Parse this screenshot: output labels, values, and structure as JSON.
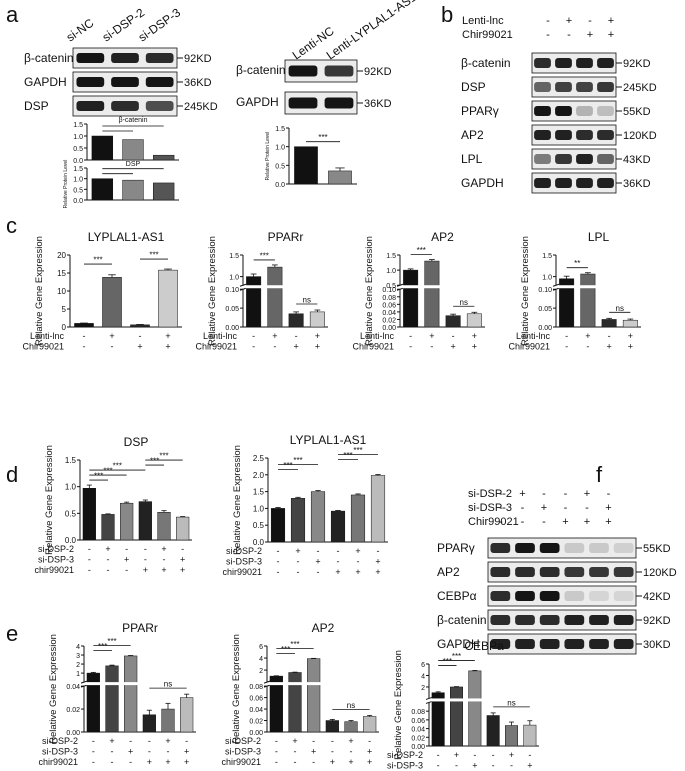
{
  "panel_letters": [
    "a",
    "b",
    "c",
    "d",
    "e",
    "f"
  ],
  "western_blots": {
    "a1": {
      "lanes": [
        "si-NC",
        "si-DSP-2",
        "si-DSP-3"
      ],
      "rows": [
        {
          "label": "β-catenin",
          "size": "92KD"
        },
        {
          "label": "GAPDH",
          "size": "36KD"
        },
        {
          "label": "DSP",
          "size": "245KD"
        }
      ]
    },
    "a2": {
      "lanes": [
        "Lenti-NC",
        "Lenti-LYPLAL1-AS1"
      ],
      "rows": [
        {
          "label": "β-catenin",
          "size": "92KD"
        },
        {
          "label": "GAPDH",
          "size": "36KD"
        }
      ]
    },
    "b": {
      "conditions": [
        {
          "label": "Lenti-lnc",
          "signs": [
            "-",
            "+",
            "-",
            "+"
          ]
        },
        {
          "label": "Chir99021",
          "signs": [
            "-",
            "-",
            "+",
            "+"
          ]
        }
      ],
      "rows": [
        {
          "label": "β-catenin",
          "size": "92KD"
        },
        {
          "label": "DSP",
          "size": "245KD"
        },
        {
          "label": "PPARγ",
          "size": "55KD"
        },
        {
          "label": "AP2",
          "size": "120KD"
        },
        {
          "label": "LPL",
          "size": "43KD"
        },
        {
          "label": "GAPDH",
          "size": "36KD"
        }
      ]
    },
    "f": {
      "conditions": [
        {
          "label": "si-DSP-2",
          "signs": [
            "-",
            "+",
            "-",
            "-",
            "+",
            "-"
          ]
        },
        {
          "label": "si-DSP-3",
          "signs": [
            "-",
            "-",
            "+",
            "-",
            "-",
            "+"
          ]
        },
        {
          "label": "Chir99021",
          "signs": [
            "-",
            "-",
            "-",
            "+",
            "+",
            "+"
          ]
        }
      ],
      "rows": [
        {
          "label": "PPARγ",
          "size": "55KD"
        },
        {
          "label": "AP2",
          "size": "120KD"
        },
        {
          "label": "CEBPα",
          "size": "42KD"
        },
        {
          "label": "β-catenin",
          "size": "92KD"
        },
        {
          "label": "GAPDH",
          "size": "30KD"
        }
      ]
    }
  },
  "chart_data": [
    {
      "id": "a_bcat",
      "type": "bar",
      "title": "β-catenin",
      "ylabel": "",
      "categories": [
        "si-NC",
        "si-DSP-2",
        "si-DSP-3"
      ],
      "values": [
        1.0,
        0.85,
        0.2
      ],
      "ylim": [
        0,
        1.5
      ],
      "yticks": [
        "0.0",
        "0.5",
        "1.0",
        "1.5"
      ],
      "colors": [
        "#111111",
        "#888888",
        "#555555"
      ],
      "sig": [
        {
          "from": 0,
          "to": 1,
          "label": ""
        },
        {
          "from": 0,
          "to": 2,
          "label": ""
        }
      ]
    },
    {
      "id": "a_dsp",
      "type": "bar",
      "title": "DSP",
      "ylabel": "Relative Protein Level",
      "categories": [
        "si-NC",
        "si-DSP-2",
        "si-DSP-3"
      ],
      "values": [
        1.0,
        0.93,
        0.8
      ],
      "ylim": [
        0,
        1.5
      ],
      "yticks": [
        "0.0",
        "0.5",
        "1.0",
        "1.5"
      ],
      "colors": [
        "#111111",
        "#888888",
        "#555555"
      ],
      "sig": [
        {
          "from": 0,
          "to": 1,
          "label": ""
        },
        {
          "from": 0,
          "to": 2,
          "label": ""
        }
      ]
    },
    {
      "id": "a_lenti",
      "type": "bar",
      "title": "",
      "ylabel": "Relative Protein Level",
      "categories": [
        "Lenti-NC",
        "Lenti-LYPLAL1-AS1"
      ],
      "values": [
        1.0,
        0.35
      ],
      "errors": [
        0,
        0.08
      ],
      "ylim": [
        0,
        1.5
      ],
      "yticks": [
        "0.0",
        "0.5",
        "1.0",
        "1.5"
      ],
      "colors": [
        "#111111",
        "#888888"
      ],
      "sig": [
        {
          "from": 0,
          "to": 1,
          "label": "***"
        }
      ]
    },
    {
      "id": "c_lyplal1",
      "type": "bar",
      "title": "LYPLAL1-AS1",
      "ylabel": "Relative Gene Expression",
      "categories": [
        "1",
        "2",
        "3",
        "4"
      ],
      "values": [
        1.0,
        13.8,
        0.6,
        15.8
      ],
      "errors": [
        0.1,
        0.7,
        0.1,
        0.3
      ],
      "ylim": [
        0,
        20
      ],
      "yticks": [
        "0",
        "5",
        "10",
        "15",
        "20"
      ],
      "colors": [
        "#111111",
        "#666666",
        "#2a2a2a",
        "#cccccc"
      ],
      "sig": [
        {
          "from": 0,
          "to": 1,
          "label": "***"
        },
        {
          "from": 2,
          "to": 3,
          "label": "***"
        }
      ],
      "treatments": [
        {
          "label": "Lenti-lnc",
          "signs": [
            "-",
            "+",
            "-",
            "+"
          ]
        },
        {
          "label": "Chir99021",
          "signs": [
            "-",
            "-",
            "+",
            "+"
          ]
        }
      ]
    },
    {
      "id": "c_pparr",
      "type": "bar",
      "title": "PPARr",
      "ylabel": "Relative Gene Expression",
      "categories": [
        "1",
        "2",
        "3",
        "4"
      ],
      "values": [
        1.0,
        1.22,
        0.035,
        0.04
      ],
      "errors": [
        0.06,
        0.05,
        0.005,
        0.005
      ],
      "broken_axis": {
        "upper": [
          0.8,
          1.5
        ],
        "lower": [
          0,
          0.1
        ],
        "upper_ticks": [
          "1.0",
          "1.5"
        ],
        "lower_ticks": [
          "0.00",
          "0.05",
          "0.10"
        ]
      },
      "colors": [
        "#111111",
        "#666666",
        "#2a2a2a",
        "#cccccc"
      ],
      "sig": [
        {
          "from": 0,
          "to": 1,
          "label": "***"
        },
        {
          "from": 2,
          "to": 3,
          "label": "ns"
        }
      ],
      "treatments": [
        {
          "label": "Lenti-lnc",
          "signs": [
            "-",
            "+",
            "-",
            "+"
          ]
        },
        {
          "label": "Chir99021",
          "signs": [
            "-",
            "-",
            "+",
            "+"
          ]
        }
      ]
    },
    {
      "id": "c_ap2",
      "type": "bar",
      "title": "AP2",
      "ylabel": "Relative Gene Expression",
      "categories": [
        "1",
        "2",
        "3",
        "4"
      ],
      "values": [
        1.0,
        1.3,
        0.03,
        0.035
      ],
      "errors": [
        0.04,
        0.05,
        0.004,
        0.004
      ],
      "broken_axis": {
        "upper": [
          0.5,
          1.5
        ],
        "lower": [
          0,
          0.1
        ],
        "upper_ticks": [
          "0.5",
          "1.0",
          "1.5"
        ],
        "lower_ticks": [
          "0.00",
          "0.02",
          "0.04",
          "0.06",
          "0.08",
          "0.10"
        ]
      },
      "colors": [
        "#111111",
        "#666666",
        "#2a2a2a",
        "#cccccc"
      ],
      "sig": [
        {
          "from": 0,
          "to": 1,
          "label": "***"
        },
        {
          "from": 2,
          "to": 3,
          "label": "ns"
        }
      ],
      "treatments": [
        {
          "label": "Lenti-lnc",
          "signs": [
            "-",
            "+",
            "-",
            "+"
          ]
        },
        {
          "label": "Chir99021",
          "signs": [
            "-",
            "-",
            "+",
            "+"
          ]
        }
      ]
    },
    {
      "id": "c_lpl",
      "type": "bar",
      "title": "LPL",
      "ylabel": "Relative Gene Expression",
      "categories": [
        "1",
        "2",
        "3",
        "4"
      ],
      "values": [
        0.95,
        1.06,
        0.02,
        0.018
      ],
      "errors": [
        0.06,
        0.03,
        0.003,
        0.003
      ],
      "broken_axis": {
        "upper": [
          0.8,
          1.5
        ],
        "lower": [
          0,
          0.1
        ],
        "upper_ticks": [
          "1.0",
          "1.5"
        ],
        "lower_ticks": [
          "0.00",
          "0.05",
          "0.10"
        ]
      },
      "colors": [
        "#111111",
        "#666666",
        "#2a2a2a",
        "#cccccc"
      ],
      "sig": [
        {
          "from": 0,
          "to": 1,
          "label": "**"
        },
        {
          "from": 2,
          "to": 3,
          "label": "ns"
        }
      ],
      "treatments": [
        {
          "label": "Lenti-lnc",
          "signs": [
            "-",
            "+",
            "-",
            "+"
          ]
        },
        {
          "label": "Chir99021",
          "signs": [
            "-",
            "-",
            "+",
            "+"
          ]
        }
      ]
    },
    {
      "id": "d_dsp",
      "type": "bar",
      "title": "DSP",
      "ylabel": "Relative Gene Expression",
      "categories": [
        "1",
        "2",
        "3",
        "4",
        "5",
        "6"
      ],
      "values": [
        0.97,
        0.48,
        0.69,
        0.72,
        0.52,
        0.43
      ],
      "errors": [
        0.06,
        0.01,
        0.02,
        0.03,
        0.03,
        0.01
      ],
      "ylim": [
        0,
        1.5
      ],
      "yticks": [
        "0.0",
        "0.5",
        "1.0",
        "1.5"
      ],
      "colors": [
        "#111111",
        "#444444",
        "#888888",
        "#222222",
        "#777777",
        "#bbbbbb"
      ],
      "sig": [
        {
          "from": 0,
          "to": 1,
          "label": "***"
        },
        {
          "from": 0,
          "to": 2,
          "label": "***"
        },
        {
          "from": 0,
          "to": 3,
          "label": "***"
        },
        {
          "from": 3,
          "to": 4,
          "label": "***"
        },
        {
          "from": 3,
          "to": 5,
          "label": "***"
        }
      ],
      "treatments": [
        {
          "label": "si-DSP-2",
          "signs": [
            "-",
            "+",
            "-",
            "-",
            "+",
            "-"
          ]
        },
        {
          "label": "si-DSP-3",
          "signs": [
            "-",
            "-",
            "+",
            "-",
            "-",
            "+"
          ]
        },
        {
          "label": "chir99021",
          "signs": [
            "-",
            "-",
            "-",
            "+",
            "+",
            "+"
          ]
        }
      ]
    },
    {
      "id": "d_lyplal1",
      "type": "bar",
      "title": "LYPLAL1-AS1",
      "ylabel": "Relative Gene Expression",
      "categories": [
        "1",
        "2",
        "3",
        "4",
        "5",
        "6"
      ],
      "values": [
        1.0,
        1.3,
        1.5,
        0.92,
        1.4,
        1.98
      ],
      "errors": [
        0.03,
        0.03,
        0.03,
        0.02,
        0.03,
        0.03
      ],
      "ylim": [
        0,
        2.5
      ],
      "yticks": [
        "0.0",
        "0.5",
        "1.0",
        "1.5",
        "2.0",
        "2.5"
      ],
      "colors": [
        "#111111",
        "#444444",
        "#888888",
        "#222222",
        "#777777",
        "#bbbbbb"
      ],
      "sig": [
        {
          "from": 0,
          "to": 1,
          "label": "***"
        },
        {
          "from": 0,
          "to": 2,
          "label": "***"
        },
        {
          "from": 3,
          "to": 4,
          "label": "***"
        },
        {
          "from": 3,
          "to": 5,
          "label": "***"
        }
      ],
      "treatments": [
        {
          "label": "si-DSP-2",
          "signs": [
            "-",
            "+",
            "-",
            "-",
            "+",
            "-"
          ]
        },
        {
          "label": "si-DSP-3",
          "signs": [
            "-",
            "-",
            "+",
            "-",
            "-",
            "+"
          ]
        },
        {
          "label": "chir99021",
          "signs": [
            "-",
            "-",
            "-",
            "+",
            "+",
            "+"
          ]
        }
      ]
    },
    {
      "id": "e_pparr",
      "type": "bar",
      "title": "PPARr",
      "ylabel": "Relative Gene Expression",
      "categories": [
        "1",
        "2",
        "3",
        "4",
        "5",
        "6"
      ],
      "values": [
        1.0,
        1.8,
        2.9,
        0.015,
        0.02,
        0.03
      ],
      "errors": [
        0.08,
        0.08,
        0.05,
        0.004,
        0.005,
        0.003
      ],
      "broken_axis": {
        "upper": [
          0,
          4
        ],
        "lower": [
          0,
          0.04
        ],
        "upper_ticks": [
          "1",
          "2",
          "3",
          "4"
        ],
        "lower_ticks": [
          "0.00",
          "0.02",
          "0.04"
        ]
      },
      "colors": [
        "#111111",
        "#444444",
        "#888888",
        "#222222",
        "#777777",
        "#bbbbbb"
      ],
      "sig": [
        {
          "from": 0,
          "to": 1,
          "label": "***"
        },
        {
          "from": 0,
          "to": 2,
          "label": "***"
        },
        {
          "from": 3,
          "to": 5,
          "label": "ns"
        }
      ],
      "treatments": [
        {
          "label": "si-DSP-2",
          "signs": [
            "-",
            "+",
            "-",
            "-",
            "+",
            "-"
          ]
        },
        {
          "label": "si-DSP-3",
          "signs": [
            "-",
            "-",
            "+",
            "-",
            "-",
            "+"
          ]
        },
        {
          "label": "chir99021",
          "signs": [
            "-",
            "-",
            "-",
            "+",
            "+",
            "+"
          ]
        }
      ]
    },
    {
      "id": "e_ap2",
      "type": "bar",
      "title": "AP2",
      "ylabel": "Relative Gene Expression",
      "categories": [
        "1",
        "2",
        "3",
        "4",
        "5",
        "6"
      ],
      "values": [
        1.0,
        1.6,
        3.9,
        0.02,
        0.018,
        0.027
      ],
      "errors": [
        0.05,
        0.06,
        0.05,
        0.002,
        0.002,
        0.002
      ],
      "broken_axis": {
        "upper": [
          0,
          6
        ],
        "lower": [
          0,
          0.08
        ],
        "upper_ticks": [
          "2",
          "4",
          "6"
        ],
        "lower_ticks": [
          "0.00",
          "0.02",
          "0.04",
          "0.06",
          "0.08"
        ]
      },
      "colors": [
        "#111111",
        "#444444",
        "#888888",
        "#222222",
        "#777777",
        "#bbbbbb"
      ],
      "sig": [
        {
          "from": 0,
          "to": 1,
          "label": "***"
        },
        {
          "from": 0,
          "to": 2,
          "label": "***"
        },
        {
          "from": 3,
          "to": 5,
          "label": "ns"
        }
      ],
      "treatments": [
        {
          "label": "si-DSP-2",
          "signs": [
            "-",
            "+",
            "-",
            "-",
            "+",
            "-"
          ]
        },
        {
          "label": "si-DSP-3",
          "signs": [
            "-",
            "-",
            "+",
            "-",
            "-",
            "+"
          ]
        },
        {
          "label": "chir99021",
          "signs": [
            "-",
            "-",
            "-",
            "+",
            "+",
            "+"
          ]
        }
      ]
    },
    {
      "id": "e_cebpa",
      "type": "bar",
      "title": "CEBPa",
      "ylabel": "Relative Gene Expression",
      "categories": [
        "1",
        "2",
        "3",
        "4",
        "5",
        "6"
      ],
      "values": [
        1.0,
        2.0,
        4.8,
        0.07,
        0.047,
        0.048
      ],
      "errors": [
        0.15,
        0.06,
        0.08,
        0.006,
        0.008,
        0.01
      ],
      "broken_axis": {
        "upper": [
          0,
          6
        ],
        "lower": [
          0,
          0.1
        ],
        "upper_ticks": [
          "2",
          "4",
          "6"
        ],
        "lower_ticks": [
          "0.00",
          "0.02",
          "0.04",
          "0.06",
          "0.08"
        ]
      },
      "colors": [
        "#111111",
        "#444444",
        "#888888",
        "#222222",
        "#777777",
        "#bbbbbb"
      ],
      "sig": [
        {
          "from": 0,
          "to": 1,
          "label": "***"
        },
        {
          "from": 0,
          "to": 2,
          "label": "***"
        },
        {
          "from": 3,
          "to": 5,
          "label": "ns"
        }
      ],
      "treatments": [
        {
          "label": "si-DSP-2",
          "signs": [
            "-",
            "+",
            "-",
            "-",
            "+",
            "-"
          ]
        },
        {
          "label": "si-DSP-3",
          "signs": [
            "-",
            "-",
            "+",
            "-",
            "-",
            "+"
          ]
        },
        {
          "label": "chir99021",
          "signs": [
            "-",
            "-",
            "-",
            "+",
            "+",
            "+"
          ]
        }
      ]
    }
  ]
}
